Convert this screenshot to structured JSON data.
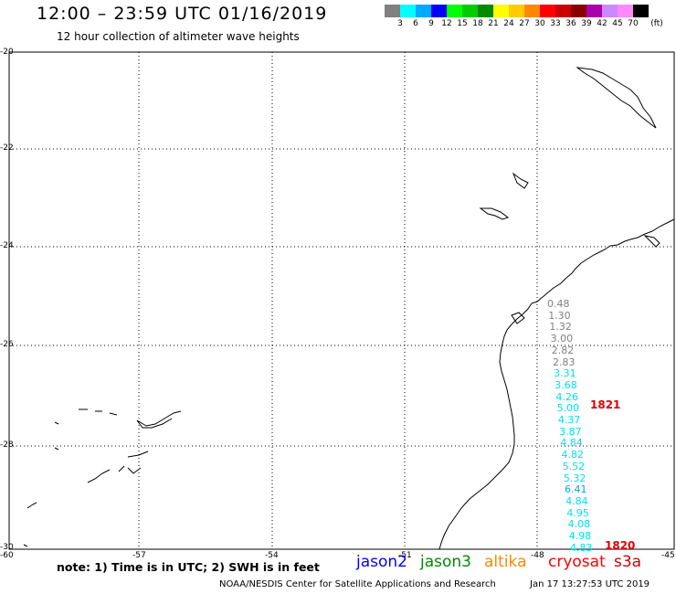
{
  "header": {
    "title": "12:00 – 23:59 UTC 01/16/2019",
    "subtitle": "12 hour collection of altimeter wave heights"
  },
  "color_scale": {
    "unit": "(ft)",
    "swatches": [
      "#808080",
      "#00ffff",
      "#00aaff",
      "#0000ff",
      "#00ff00",
      "#00cc00",
      "#008800",
      "#ffff00",
      "#ffcc00",
      "#ff8800",
      "#ff0000",
      "#cc0000",
      "#880000",
      "#aa00aa",
      "#cc88ff",
      "#ff88ff",
      "#000000"
    ],
    "labels": [
      "3",
      "6",
      "9",
      "12",
      "15",
      "18",
      "21",
      "24",
      "27",
      "30",
      "33",
      "36",
      "39",
      "42",
      "45",
      "70"
    ]
  },
  "axes": {
    "lat_labels": [
      "-20",
      "-22",
      "-24",
      "-26",
      "-28",
      "-30"
    ],
    "lon_labels": [
      "-60",
      "-57",
      "-54",
      "-51",
      "-48",
      "-45"
    ]
  },
  "wave_heights": [
    {
      "value": "0.48",
      "color": "#808080"
    },
    {
      "value": "1.30",
      "color": "#808080"
    },
    {
      "value": "1.32",
      "color": "#808080"
    },
    {
      "value": "3.00",
      "color": "#808080"
    },
    {
      "value": "2.82",
      "color": "#808080"
    },
    {
      "value": "2.83",
      "color": "#808080"
    },
    {
      "value": "3.31",
      "color": "#00e0f0"
    },
    {
      "value": "3.68",
      "color": "#00e0f0"
    },
    {
      "value": "4.26",
      "color": "#00e0f0"
    },
    {
      "value": "5.00",
      "color": "#00e0f0"
    },
    {
      "value": "4.37",
      "color": "#00e0f0"
    },
    {
      "value": "3.87",
      "color": "#00e0f0"
    },
    {
      "value": "4.84",
      "color": "#00e0f0"
    },
    {
      "value": "4.82",
      "color": "#00e0f0"
    },
    {
      "value": "5.52",
      "color": "#00e0f0"
    },
    {
      "value": "5.32",
      "color": "#00e0f0"
    },
    {
      "value": "6.41",
      "color": "#00aacc"
    },
    {
      "value": "4.84",
      "color": "#00e0f0"
    },
    {
      "value": "4.95",
      "color": "#00e0f0"
    },
    {
      "value": "4.08",
      "color": "#00e0f0"
    },
    {
      "value": "4.98",
      "color": "#00e0f0"
    },
    {
      "value": "4.83",
      "color": "#00e0f0"
    }
  ],
  "pass_times": [
    "1821",
    "1820"
  ],
  "footer": {
    "note": "note: 1) Time is in UTC; 2) SWH is in feet",
    "satellites": [
      {
        "name": "jason2",
        "color": "#0000ff"
      },
      {
        "name": "jason3",
        "color": "#008800"
      },
      {
        "name": "altika",
        "color": "#ff8800"
      },
      {
        "name": "cryosat",
        "color": "#ff0000"
      },
      {
        "name": "s3a",
        "color": "#cc0000"
      }
    ],
    "credit": "NOAA/NESDIS Center for Satellite Applications and Research",
    "timestamp": "Jan 17 13:27:53 UTC 2019"
  }
}
